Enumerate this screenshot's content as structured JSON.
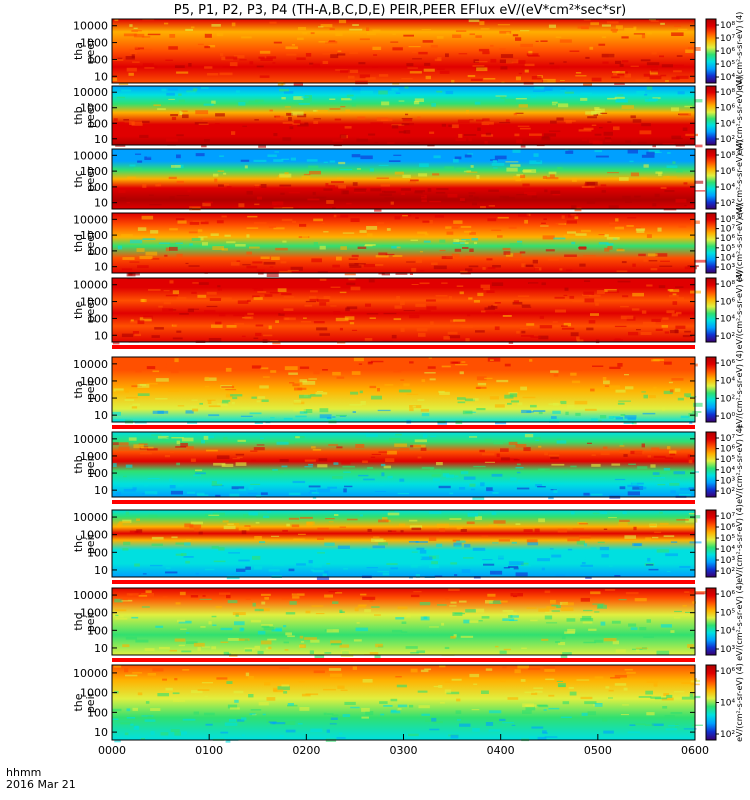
{
  "title": "P5, P1, P2, P3, P4 (TH-A,B,C,D,E) PEIR,PEER EFlux eV/(eV*cm²*sec*sr)",
  "x_label_top": "hhmm",
  "x_label_bottom": "2016 Mar 21",
  "colors": {
    "ramp": [
      "#3a0070",
      "#1030d0",
      "#00a0ff",
      "#00e0e0",
      "#30e070",
      "#e0f040",
      "#ffb000",
      "#ff5000",
      "#e00000",
      "#b00000"
    ],
    "flag": "#ff0000",
    "frame": "#000000"
  },
  "chart_data": {
    "type": "heatmap",
    "x_ticks": [
      "0000",
      "0100",
      "0200",
      "0300",
      "0400",
      "0500",
      "0600"
    ],
    "y_ticks": [
      "10000",
      "1000",
      "100",
      "10"
    ],
    "y_scale": "log",
    "x_range": [
      "0000",
      "0600"
    ],
    "panels": [
      {
        "name": "tha peer",
        "probe": "tha",
        "species": "peer",
        "ylabel_probe": "tha",
        "ylabel_species": "peer",
        "cb_ticks": [
          "10⁸",
          "10⁷",
          "10⁶",
          "10⁵",
          "10⁴"
        ],
        "cb_unit": "eV/(cm²-s-sr-eV) (4)"
      },
      {
        "name": "thb peer",
        "probe": "thb",
        "species": "peer",
        "ylabel_probe": "thb",
        "ylabel_species": "peer",
        "cb_ticks": [
          "10⁸",
          "10⁶",
          "10⁴",
          "10²"
        ],
        "cb_unit": "eV/(cm²-s-sr-eV) (4)"
      },
      {
        "name": "thc peer",
        "probe": "thc",
        "species": "peer",
        "ylabel_probe": "thc",
        "ylabel_species": "peer",
        "cb_ticks": [
          "10⁸",
          "10⁶",
          "10⁴",
          "10²"
        ],
        "cb_unit": "eV/(cm²-s-sr-eV) (4)"
      },
      {
        "name": "thd peer",
        "probe": "thd",
        "species": "peer",
        "ylabel_probe": "thd",
        "ylabel_species": "peer",
        "cb_ticks": [
          "10⁸",
          "10⁷",
          "10⁶",
          "10⁵",
          "10⁴",
          "10³"
        ],
        "cb_unit": "eV/(cm²-s-sr-eV) (4)"
      },
      {
        "name": "the peer",
        "probe": "the",
        "species": "peer",
        "ylabel_probe": "the",
        "ylabel_species": "peer",
        "cb_ticks": [
          "10⁸",
          "10⁶",
          "10⁴",
          "10²"
        ],
        "cb_unit": "eV/(cm²-s-sr-eV) (4)"
      },
      {
        "name": "tha peir",
        "probe": "tha",
        "species": "peir",
        "ylabel_probe": "tha",
        "ylabel_species": "peir",
        "cb_ticks": [
          "10⁶",
          "10⁴",
          "10²",
          "10⁰"
        ],
        "cb_unit": "eV/(cm²-s-sr-eV) (4)"
      },
      {
        "name": "thb peir",
        "probe": "thb",
        "species": "peir",
        "ylabel_probe": "thb",
        "ylabel_species": "peir",
        "cb_ticks": [
          "10⁷",
          "10⁶",
          "10⁵",
          "10⁴",
          "10³",
          "10²"
        ],
        "cb_unit": "eV/(cm²-s-sr-eV) (4)"
      },
      {
        "name": "thc peir",
        "probe": "thc",
        "species": "peir",
        "ylabel_probe": "thc",
        "ylabel_species": "peir",
        "cb_ticks": [
          "10⁷",
          "10⁶",
          "10⁵",
          "10⁴",
          "10³",
          "10²"
        ],
        "cb_unit": "eV/(cm²-s-sr-eV) (4)"
      },
      {
        "name": "thd peir",
        "probe": "thd",
        "species": "peir",
        "ylabel_probe": "thd",
        "ylabel_species": "peir",
        "cb_ticks": [
          "10⁶",
          "10⁵",
          "10⁴",
          "10³"
        ],
        "cb_unit": "eV/(cm²-s-sr-eV) (4)"
      },
      {
        "name": "the peir",
        "probe": "the",
        "species": "peir",
        "ylabel_probe": "the",
        "ylabel_species": "peir",
        "cb_ticks": [
          "10⁶",
          "10⁴",
          "10²"
        ],
        "cb_unit": "eV/(cm²-s-sr-eV) (4)"
      }
    ]
  }
}
